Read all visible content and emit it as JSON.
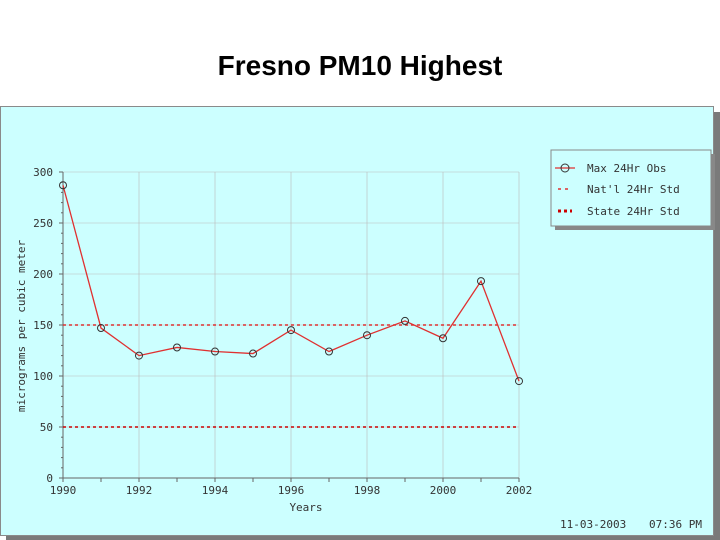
{
  "title": "Fresno PM10 Highest",
  "chart_data": {
    "type": "line",
    "xlabel": "Years",
    "ylabel": "micrograms per cubic meter",
    "xlim": [
      1990,
      2002
    ],
    "ylim": [
      0,
      300
    ],
    "x_ticks": [
      "1990",
      "1992",
      "1994",
      "1996",
      "1998",
      "2000",
      "2002"
    ],
    "y_ticks": [
      "0",
      "50",
      "100",
      "150",
      "200",
      "250",
      "300"
    ],
    "grid": true,
    "legend_position": "top-right",
    "series": [
      {
        "name": "Max 24Hr Obs",
        "style": "solid-circle-markers",
        "color": "#e03030",
        "x": [
          1990,
          1991,
          1992,
          1993,
          1994,
          1995,
          1996,
          1997,
          1998,
          1999,
          2000,
          2001,
          2002
        ],
        "values": [
          287,
          147,
          120,
          128,
          124,
          122,
          145,
          124,
          140,
          154,
          137,
          193,
          95
        ]
      },
      {
        "name": "Nat'l 24Hr Std",
        "style": "dashed",
        "color": "#e03030",
        "constant": 150
      },
      {
        "name": "State 24Hr Std",
        "style": "dotted-bold",
        "color": "#cc0000",
        "constant": 50
      }
    ]
  },
  "footer": {
    "date": "11-03-2003",
    "time": "07:36 PM"
  }
}
